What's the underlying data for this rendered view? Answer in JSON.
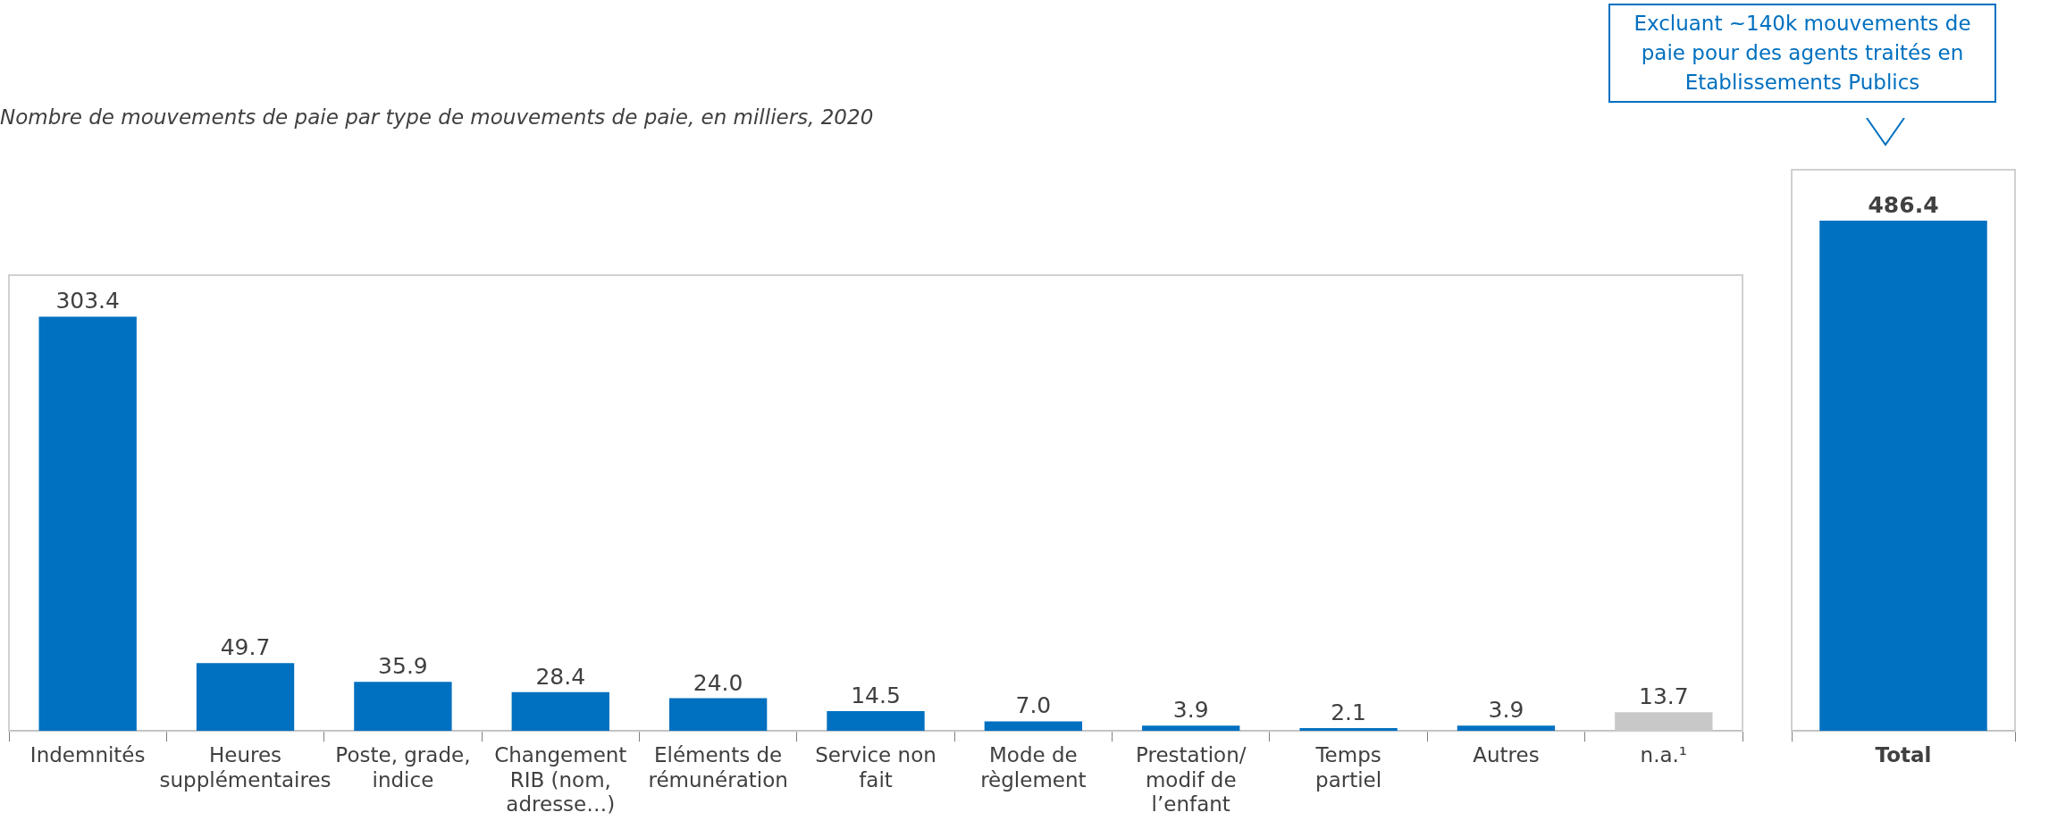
{
  "chart_data": [
    {
      "type": "bar",
      "title": "Nombre de mouvements de paie par type de mouvements de paie, en milliers, 2020",
      "categories": [
        "Indemnités",
        "Heures supplémentaires",
        "Poste, grade, indice",
        "Changement RIB (nom, adresse…)",
        "Eléments de rémunération",
        "Service non fait",
        "Mode de règlement",
        "Prestation/ modif de l’enfant",
        "Temps partiel",
        "Autres",
        "n.a.¹"
      ],
      "values": [
        303.4,
        49.7,
        35.9,
        28.4,
        24.0,
        14.5,
        7.0,
        3.9,
        2.1,
        3.9,
        13.7
      ],
      "colors": [
        "#0070c0",
        "#0070c0",
        "#0070c0",
        "#0070c0",
        "#0070c0",
        "#0070c0",
        "#0070c0",
        "#0070c0",
        "#0070c0",
        "#0070c0",
        "#c8c8c8"
      ],
      "value_labels": [
        "303.4",
        "49.7",
        "35.9",
        "28.4",
        "24.0",
        "14.5",
        "7.0",
        "3.9",
        "2.1",
        "3.9",
        "13.7"
      ]
    },
    {
      "type": "bar",
      "categories": [
        "Total"
      ],
      "values": [
        486.4
      ],
      "colors": [
        "#0070c0"
      ],
      "value_labels": [
        "486.4"
      ],
      "annotations": [
        "Excluant ~140k mouvements de paie pour des agents traités en Etablissements Publics"
      ]
    }
  ]
}
